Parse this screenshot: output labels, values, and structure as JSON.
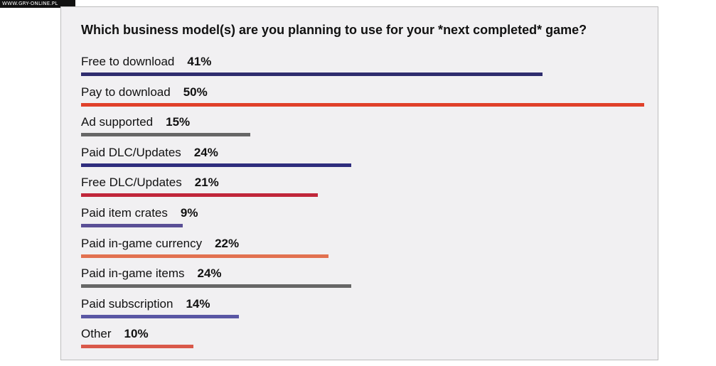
{
  "watermark": "WWW.GRY-ONLINE.PL",
  "chart_data": {
    "type": "bar",
    "orientation": "horizontal",
    "title": "Which business model(s) are you planning to use for your *next completed* game?",
    "categories": [
      "Free to download",
      "Pay to download",
      "Ad supported",
      "Paid DLC/Updates",
      "Free DLC/Updates",
      "Paid item crates",
      "Paid in-game currency",
      "Paid in-game items",
      "Paid subscription",
      "Other"
    ],
    "values": [
      41,
      50,
      15,
      24,
      21,
      9,
      22,
      24,
      14,
      10
    ],
    "value_labels": [
      "41%",
      "50%",
      "15%",
      "24%",
      "21%",
      "9%",
      "22%",
      "24%",
      "14%",
      "10%"
    ],
    "colors": [
      "#2f2d6e",
      "#e0402a",
      "#666666",
      "#2f2d7e",
      "#c0263a",
      "#5a4f96",
      "#e27150",
      "#666666",
      "#5a57a4",
      "#d9594a"
    ],
    "xlim": [
      0,
      50
    ],
    "grid": false,
    "legend": "none"
  }
}
